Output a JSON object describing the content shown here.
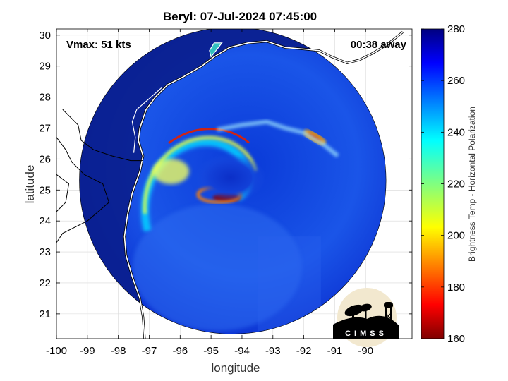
{
  "chart_data": {
    "type": "heatmap",
    "title": "Beryl: 07-Jul-2024 07:45:00",
    "xlabel": "longitude",
    "ylabel": "latitude",
    "xlim": [
      -100,
      -88.5
    ],
    "ylim": [
      20.2,
      30.2
    ],
    "xticks": [
      "-100",
      "-99",
      "-98",
      "-97",
      "-96",
      "-95",
      "-94",
      "-93",
      "-92",
      "-91",
      "-90"
    ],
    "xtick_values": [
      -100,
      -99,
      -98,
      -97,
      -96,
      -95,
      -94,
      -93,
      -92,
      -91,
      -90
    ],
    "yticks": [
      "21",
      "22",
      "23",
      "24",
      "25",
      "26",
      "27",
      "28",
      "29",
      "30"
    ],
    "ytick_values": [
      21,
      22,
      23,
      24,
      25,
      26,
      27,
      28,
      29,
      30
    ],
    "grid": true,
    "annotation_left": "Vmax: 51 kts",
    "annotation_right": "00:38 away",
    "colorbar": {
      "label": "Brightness Temp - Horizontal Polarization",
      "min": 160,
      "max": 280,
      "ticks": [
        "160",
        "180",
        "200",
        "220",
        "240",
        "260",
        "280"
      ],
      "tick_values": [
        160,
        180,
        200,
        220,
        240,
        260,
        280
      ],
      "colormap": "jet"
    },
    "storm_center": {
      "lon": -94.6,
      "lat": 24.9
    },
    "swath": {
      "center_lon": -94.3,
      "center_lat": 25.3,
      "radius_deg_lat": 4.95
    },
    "logo_text": "CIMSS",
    "colors": {
      "background_cold": "#0b2fd0",
      "land_warm": "#0a1e8c",
      "rainband_core": "#8b0000"
    }
  }
}
